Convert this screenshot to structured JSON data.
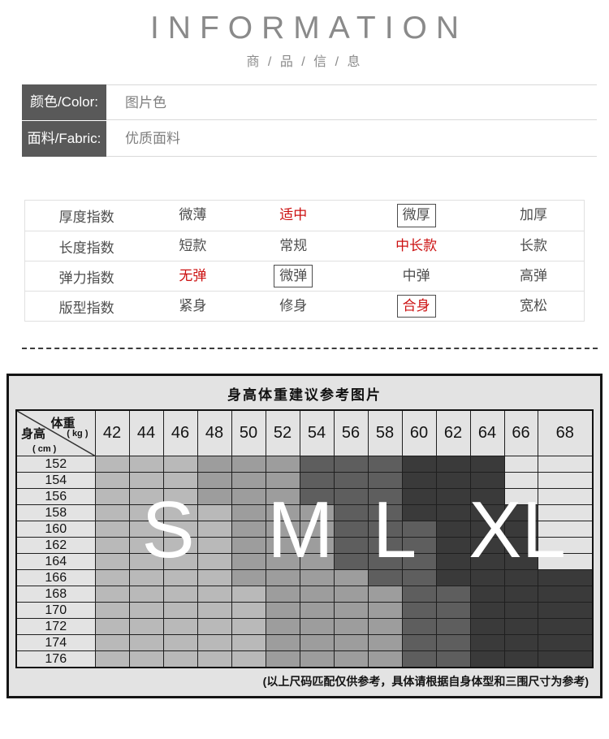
{
  "header": {
    "title": "INFORMATION",
    "subtitle": "商 / 品 / 信 / 息"
  },
  "info_rows": [
    {
      "label": "颜色/Color:",
      "value": "图片色"
    },
    {
      "label": "面料/Fabric:",
      "value": "优质面料"
    }
  ],
  "index_table": {
    "rows": [
      {
        "label": "厚度指数",
        "options": [
          {
            "text": "微薄",
            "style": "plain"
          },
          {
            "text": "适中",
            "style": "red"
          },
          {
            "text": "微厚",
            "style": "boxed"
          },
          {
            "text": "加厚",
            "style": "plain"
          }
        ]
      },
      {
        "label": "长度指数",
        "options": [
          {
            "text": "短款",
            "style": "plain"
          },
          {
            "text": "常规",
            "style": "plain"
          },
          {
            "text": "中长款",
            "style": "red"
          },
          {
            "text": "长款",
            "style": "plain"
          }
        ]
      },
      {
        "label": "弹力指数",
        "options": [
          {
            "text": "无弹",
            "style": "red"
          },
          {
            "text": "微弹",
            "style": "boxed"
          },
          {
            "text": "中弹",
            "style": "plain"
          },
          {
            "text": "高弹",
            "style": "plain"
          }
        ]
      },
      {
        "label": "版型指数",
        "options": [
          {
            "text": "紧身",
            "style": "plain"
          },
          {
            "text": "修身",
            "style": "plain"
          },
          {
            "text": "合身",
            "style": "red-boxed"
          },
          {
            "text": "宽松",
            "style": "plain"
          }
        ]
      }
    ]
  },
  "colors": {
    "accent_red": "#cc1111",
    "label_box_gray": "#595959"
  },
  "size_chart": {
    "title": "身高体重建议参考图片",
    "corner": {
      "top": "体重",
      "top_unit": "( kg )",
      "bottom": "身高",
      "bottom_unit": "( cm )"
    },
    "size_labels": [
      "S",
      "M",
      "L",
      "XL"
    ],
    "note": "(以上尺码匹配仅供参考，具体请根据自身体型和三围尺寸为参考)",
    "chart_data": {
      "type": "heatmap",
      "x_label": "体重(kg)",
      "y_label": "身高(cm)",
      "weights": [
        "42",
        "44",
        "46",
        "48",
        "50",
        "52",
        "54",
        "56",
        "58",
        "60",
        "62",
        "64",
        "66",
        "68"
      ],
      "heights": [
        "152",
        "154",
        "156",
        "158",
        "160",
        "162",
        "164",
        "166",
        "168",
        "170",
        "172",
        "174",
        "176"
      ],
      "zones": [
        [
          "S",
          "S",
          "S",
          "M",
          "M",
          "M",
          "L",
          "L",
          "L",
          "XL",
          "XL",
          "XL",
          "",
          ""
        ],
        [
          "S",
          "S",
          "S",
          "M",
          "M",
          "M",
          "L",
          "L",
          "L",
          "XL",
          "XL",
          "XL",
          "",
          ""
        ],
        [
          "S",
          "S",
          "S",
          "M",
          "M",
          "M",
          "L",
          "L",
          "L",
          "XL",
          "XL",
          "XL",
          "",
          ""
        ],
        [
          "S",
          "S",
          "S",
          "S",
          "M",
          "M",
          "M",
          "L",
          "L",
          "XL",
          "XL",
          "XL",
          "XL",
          ""
        ],
        [
          "S",
          "S",
          "S",
          "S",
          "M",
          "M",
          "M",
          "L",
          "L",
          "L",
          "XL",
          "XL",
          "XL",
          ""
        ],
        [
          "S",
          "S",
          "S",
          "S",
          "M",
          "M",
          "M",
          "L",
          "L",
          "L",
          "XL",
          "XL",
          "XL",
          ""
        ],
        [
          "S",
          "S",
          "S",
          "S",
          "M",
          "M",
          "M",
          "L",
          "L",
          "L",
          "XL",
          "XL",
          "XL",
          ""
        ],
        [
          "S",
          "S",
          "S",
          "S",
          "M",
          "M",
          "M",
          "M",
          "L",
          "L",
          "XL",
          "XL",
          "XL",
          "XL"
        ],
        [
          "S",
          "S",
          "S",
          "S",
          "S",
          "M",
          "M",
          "M",
          "M",
          "L",
          "L",
          "XL",
          "XL",
          "XL"
        ],
        [
          "S",
          "S",
          "S",
          "S",
          "S",
          "M",
          "M",
          "M",
          "M",
          "L",
          "L",
          "XL",
          "XL",
          "XL"
        ],
        [
          "S",
          "S",
          "S",
          "S",
          "S",
          "M",
          "M",
          "M",
          "M",
          "L",
          "L",
          "XL",
          "XL",
          "XL"
        ],
        [
          "S",
          "S",
          "S",
          "S",
          "S",
          "M",
          "M",
          "M",
          "M",
          "L",
          "L",
          "XL",
          "XL",
          "XL"
        ],
        [
          "S",
          "S",
          "S",
          "S",
          "S",
          "M",
          "M",
          "M",
          "M",
          "L",
          "L",
          "XL",
          "XL",
          "XL"
        ]
      ],
      "zone_colors": {
        "S": "#b9b9b9",
        "M": "#9d9d9d",
        "L": "#5e5e5e",
        "XL": "#3a3a3a",
        "none": "#e3e3e3"
      }
    }
  }
}
